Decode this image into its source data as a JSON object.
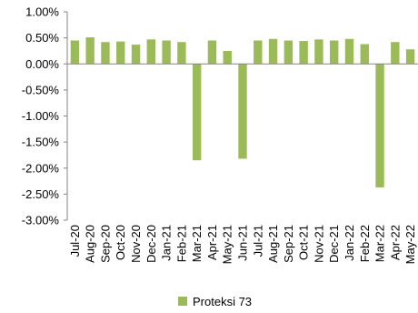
{
  "chart_data": {
    "type": "bar",
    "categories": [
      "Jul-20",
      "Aug-20",
      "Sep-20",
      "Oct-20",
      "Nov-20",
      "Dec-20",
      "Jan-21",
      "Feb-21",
      "Mar-21",
      "Apr-21",
      "May-21",
      "Jun-21",
      "Jul-21",
      "Aug-21",
      "Sep-21",
      "Oct-21",
      "Nov-21",
      "Dec-21",
      "Jan-22",
      "Feb-22",
      "Mar-22",
      "Apr-22",
      "May-22"
    ],
    "series": [
      {
        "name": "Proteksi 73",
        "color": "#9bbb59",
        "values": [
          0.45,
          0.51,
          0.42,
          0.43,
          0.37,
          0.47,
          0.45,
          0.42,
          -1.85,
          0.45,
          0.25,
          -1.82,
          0.45,
          0.48,
          0.45,
          0.44,
          0.47,
          0.45,
          0.48,
          0.38,
          -2.37,
          0.42,
          0.28
        ]
      }
    ],
    "yticks": [
      "1.00%",
      "0.50%",
      "0.00%",
      "-0.50%",
      "-1.00%",
      "-1.50%",
      "-2.00%",
      "-2.50%",
      "-3.00%"
    ],
    "ytick_values": [
      1.0,
      0.5,
      0.0,
      -0.5,
      -1.0,
      -1.5,
      -2.0,
      -2.5,
      -3.0
    ],
    "ylim": [
      -3.0,
      1.0
    ],
    "grid": false,
    "legend_position": "bottom"
  }
}
